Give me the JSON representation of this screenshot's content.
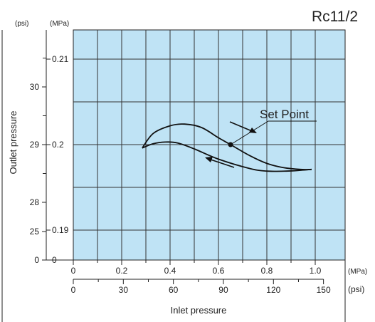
{
  "chart_data": {
    "type": "line",
    "title": "Rc11/2",
    "xlabel": "Inlet pressure",
    "ylabel": "Outlet pressure",
    "x_unit_primary": "(MPa)",
    "x_unit_secondary": "(psi)",
    "y_unit_psi": "(psi)",
    "y_unit_mpa": "(MPa)",
    "xlim": [
      0,
      1.0
    ],
    "ylim": [
      0.185,
      0.215
    ],
    "x_ticks_mpa": [
      {
        "value": 0,
        "label": "0"
      },
      {
        "value": 0.2,
        "label": "0.2"
      },
      {
        "value": 0.4,
        "label": "0.4"
      },
      {
        "value": 0.6,
        "label": "0.6"
      },
      {
        "value": 0.8,
        "label": "0.8"
      },
      {
        "value": 1.0,
        "label": "1.0"
      }
    ],
    "x_ticks_psi": [
      {
        "value": 0,
        "label": "0"
      },
      {
        "value": 30,
        "label": "30"
      },
      {
        "value": 60,
        "label": "60"
      },
      {
        "value": 90,
        "label": "90"
      },
      {
        "value": 120,
        "label": "120"
      },
      {
        "value": 150,
        "label": "150"
      }
    ],
    "y_ticks_mpa": [
      {
        "value": 0.21,
        "label": "0.21"
      },
      {
        "value": 0.2,
        "label": "0.2"
      },
      {
        "value": 0.19,
        "label": "0.19"
      },
      {
        "value": 0.185,
        "label": "0"
      }
    ],
    "y_ticks_psi": [
      {
        "value": 30,
        "label": "30"
      },
      {
        "value": 29,
        "label": "29"
      },
      {
        "value": 28,
        "label": "28"
      },
      {
        "value": 25,
        "label": "25"
      },
      {
        "value": 0,
        "label": "0"
      }
    ],
    "grid": true,
    "series": [
      {
        "direction": "increasing",
        "x": [
          0.285,
          0.33,
          0.4,
          0.46,
          0.53,
          0.6,
          0.65,
          0.73,
          0.8,
          0.87,
          0.94,
          0.985
        ],
        "y": [
          0.1996,
          0.2013,
          0.2022,
          0.2024,
          0.202,
          0.2008,
          0.2,
          0.1987,
          0.1978,
          0.1973,
          0.1971,
          0.1971
        ]
      },
      {
        "direction": "decreasing",
        "x": [
          0.985,
          0.94,
          0.88,
          0.8,
          0.73,
          0.6,
          0.5,
          0.43,
          0.38,
          0.33,
          0.285
        ],
        "y": [
          0.1971,
          0.197,
          0.1969,
          0.1969,
          0.1972,
          0.1983,
          0.1995,
          0.2002,
          0.2003,
          0.2001,
          0.1996
        ]
      }
    ],
    "annotations": [
      {
        "text": "Set Point",
        "x": 0.65,
        "y": 0.2
      }
    ],
    "colors": {
      "plot_background": "#bfe3f5",
      "grid": "#333333",
      "lines": "#111111"
    }
  }
}
